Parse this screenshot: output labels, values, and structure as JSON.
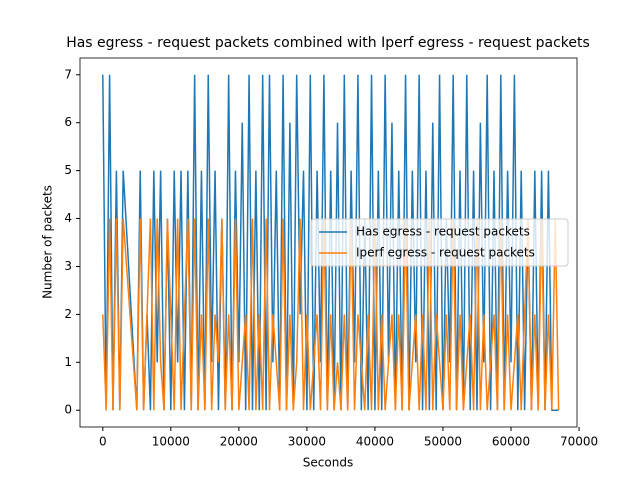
{
  "chart_data": {
    "type": "line",
    "title": "Has egress - request packets combined with Iperf egress - request packets",
    "xlabel": "Seconds",
    "ylabel": "Number of packets",
    "x": [
      0,
      500,
      1000,
      1500,
      2000,
      2500,
      3000,
      5000,
      5500,
      6000,
      6500,
      7000,
      7500,
      8000,
      8500,
      9000,
      9500,
      10000,
      10500,
      11000,
      11500,
      12000,
      12500,
      13000,
      13500,
      14000,
      14500,
      15000,
      15500,
      16000,
      16500,
      17000,
      17500,
      18000,
      18500,
      19000,
      19500,
      20000,
      20500,
      21000,
      21500,
      22000,
      22500,
      23000,
      23500,
      24000,
      24500,
      25000,
      25500,
      26000,
      26500,
      27000,
      27500,
      28000,
      28500,
      29000,
      29500,
      30000,
      30500,
      31000,
      31500,
      32000,
      32500,
      33000,
      33500,
      34000,
      34500,
      35000,
      35500,
      36000,
      36500,
      37000,
      37500,
      38000,
      38500,
      39000,
      39500,
      40000,
      40500,
      41000,
      41500,
      42000,
      42500,
      43000,
      43500,
      44000,
      44500,
      45000,
      45500,
      46000,
      46500,
      47000,
      47500,
      48000,
      48500,
      49000,
      49500,
      50000,
      50500,
      51000,
      51500,
      52000,
      52500,
      53000,
      53500,
      54000,
      54500,
      55000,
      55500,
      56000,
      56500,
      57000,
      57500,
      58000,
      58500,
      59000,
      59500,
      60000,
      60500,
      61000,
      61500,
      62000,
      62500,
      63000,
      63500,
      64000,
      64500,
      65000,
      65500,
      66000,
      66500,
      67000
    ],
    "series": [
      {
        "name": "Has egress - request packets",
        "color": "#1f77b4",
        "values": [
          7,
          0,
          7,
          0,
          5,
          0,
          5,
          0,
          5,
          0,
          2,
          0,
          5,
          1,
          5,
          0,
          4,
          0,
          5,
          1,
          5,
          0,
          5,
          0,
          7,
          0,
          5,
          0,
          7,
          1,
          5,
          0,
          4,
          0,
          7,
          0,
          5,
          1,
          6,
          0,
          7,
          0,
          5,
          0,
          7,
          0,
          7,
          1,
          5,
          0,
          7,
          0,
          6,
          0,
          7,
          2,
          5,
          0,
          7,
          0,
          5,
          1,
          7,
          0,
          5,
          0,
          6,
          0,
          7,
          0,
          5,
          1,
          7,
          0,
          4,
          0,
          7,
          0,
          5,
          0,
          7,
          1,
          6,
          0,
          5,
          0,
          7,
          0,
          5,
          1,
          7,
          0,
          5,
          0,
          6,
          0,
          7,
          0,
          4,
          1,
          7,
          0,
          5,
          0,
          7,
          0,
          5,
          0,
          6,
          1,
          7,
          0,
          5,
          0,
          7,
          0,
          5,
          1,
          7,
          0,
          5,
          0,
          4,
          0,
          5,
          0,
          5,
          0,
          5,
          0,
          0,
          0
        ]
      },
      {
        "name": "Iperf egress - request packets",
        "color": "#ff7f0e",
        "values": [
          2,
          0,
          4,
          0,
          4,
          0,
          4,
          0,
          4,
          0,
          2,
          4,
          0,
          4,
          1,
          0,
          4,
          2,
          0,
          4,
          0,
          2,
          4,
          0,
          4,
          0,
          2,
          0,
          4,
          0,
          2,
          1,
          4,
          0,
          2,
          0,
          4,
          0,
          1,
          2,
          0,
          4,
          0,
          2,
          0,
          4,
          0,
          2,
          1,
          0,
          4,
          0,
          2,
          0,
          1,
          4,
          0,
          2,
          0,
          1,
          2,
          0,
          4,
          0,
          2,
          0,
          1,
          0,
          2,
          0,
          4,
          0,
          2,
          1,
          0,
          2,
          0,
          4,
          0,
          2,
          0,
          1,
          2,
          0,
          2,
          0,
          4,
          0,
          1,
          2,
          0,
          2,
          0,
          4,
          0,
          2,
          1,
          0,
          2,
          0,
          4,
          0,
          2,
          0,
          1,
          2,
          0,
          4,
          0,
          2,
          0,
          1,
          2,
          0,
          4,
          0,
          2,
          0,
          1,
          2,
          0,
          2,
          4,
          0,
          2,
          0,
          4,
          0,
          2,
          0,
          4,
          0
        ]
      }
    ],
    "xlim": [
      -3350,
      69700
    ],
    "xticks": [
      0,
      10000,
      20000,
      30000,
      40000,
      50000,
      60000,
      70000
    ],
    "ylim": [
      -0.35,
      7.35
    ],
    "yticks": [
      0,
      1,
      2,
      3,
      4,
      5,
      6,
      7
    ],
    "legend": "center right"
  }
}
